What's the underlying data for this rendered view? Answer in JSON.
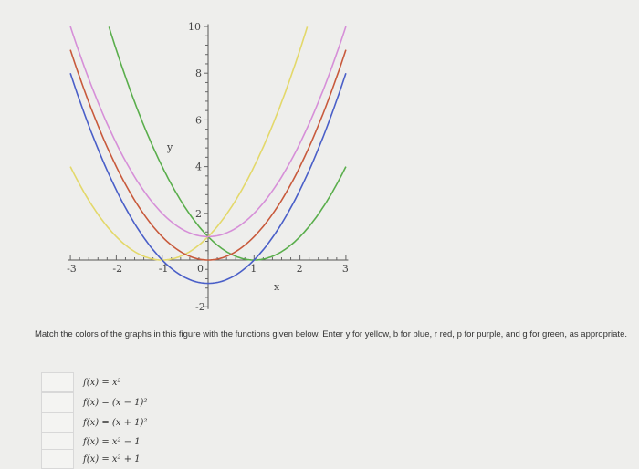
{
  "chart_data": {
    "type": "line",
    "xlabel": "x",
    "ylabel": "y",
    "xlim": [
      -3,
      3
    ],
    "ylim": [
      -2,
      10
    ],
    "x_ticks": [
      "-3",
      "-2",
      "-1",
      "0",
      "1",
      "2",
      "3"
    ],
    "y_ticks": [
      "-2",
      "2",
      "4",
      "6",
      "8",
      "10"
    ],
    "grid": false,
    "series": [
      {
        "color": "#e3d86a",
        "expr": "(x+1)^2",
        "x_range": [
          -3,
          2.16
        ]
      },
      {
        "color": "#5aae4c",
        "expr": "(x-1)^2",
        "x_range": [
          -2.16,
          3
        ]
      },
      {
        "color": "#d68fd8",
        "expr": "x^2+1",
        "x_range": [
          -3,
          3
        ]
      },
      {
        "color": "#c85a3c",
        "expr": "x^2",
        "x_range": [
          -3,
          3
        ]
      },
      {
        "color": "#4a5fc8",
        "expr": "x^2-1",
        "x_range": [
          -3,
          3
        ]
      }
    ]
  },
  "question": {
    "text": "Match the colors of the graphs in this figure with the functions given below. Enter y for yellow, b for blue, r red, p for purple, and g for green, as appropriate.",
    "functions": [
      "f(x) = x²",
      "f(x) = (x − 1)²",
      "f(x) = (x + 1)²",
      "f(x) = x² − 1",
      "f(x) = x² + 1"
    ],
    "answers": [
      "",
      "",
      "",
      "",
      ""
    ]
  }
}
